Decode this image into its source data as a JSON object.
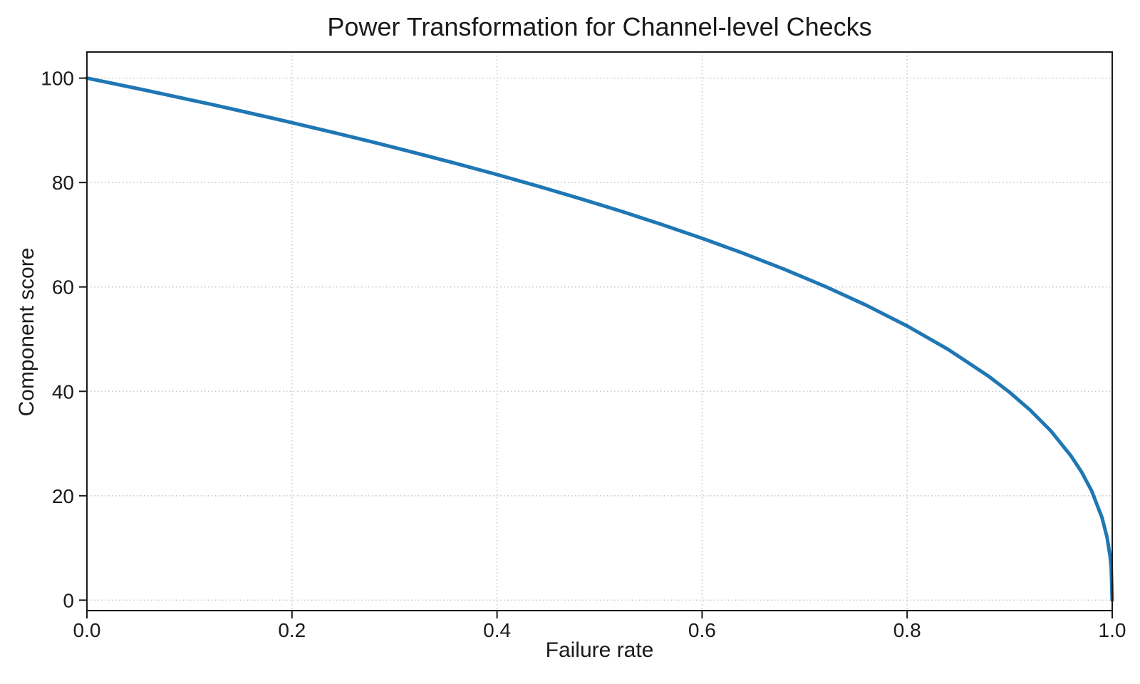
{
  "chart_data": {
    "type": "line",
    "title": "Power Transformation for Channel-level Checks",
    "xlabel": "Failure rate",
    "ylabel": "Component score",
    "xlim": [
      0,
      1
    ],
    "ylim": [
      -2,
      105
    ],
    "xticks": {
      "values": [
        0,
        0.2,
        0.4,
        0.6,
        0.8,
        1.0
      ],
      "labels": [
        "0.0",
        "0.2",
        "0.4",
        "0.6",
        "0.8",
        "1.0"
      ]
    },
    "yticks": {
      "values": [
        0,
        20,
        40,
        60,
        80,
        100
      ],
      "labels": [
        "0",
        "20",
        "40",
        "60",
        "80",
        "100"
      ]
    },
    "grid": {
      "visible": true,
      "line_style": "dotted",
      "color": "#c8c8c8"
    },
    "legend": {
      "visible": false
    },
    "axis_color": "#1a1a1a",
    "text_color": "#1a1a1a",
    "background_color": "#ffffff",
    "series": [
      {
        "name": "component_score",
        "color": "#1f77b4",
        "line_width": 5,
        "formula": "score = 100 * (1 - failure_rate)^0.4",
        "points": [
          [
            0,
            100
          ],
          [
            0.02,
            99.19
          ],
          [
            0.04,
            98.38
          ],
          [
            0.06,
            97.56
          ],
          [
            0.08,
            96.72
          ],
          [
            0.1,
            95.87
          ],
          [
            0.12,
            95.02
          ],
          [
            0.14,
            94.15
          ],
          [
            0.16,
            93.26
          ],
          [
            0.18,
            92.37
          ],
          [
            0.2,
            91.46
          ],
          [
            0.24,
            89.6
          ],
          [
            0.28,
            87.69
          ],
          [
            0.32,
            85.7
          ],
          [
            0.36,
            83.65
          ],
          [
            0.4,
            81.52
          ],
          [
            0.44,
            79.3
          ],
          [
            0.48,
            76.98
          ],
          [
            0.52,
            74.56
          ],
          [
            0.56,
            72.01
          ],
          [
            0.6,
            69.31
          ],
          [
            0.64,
            66.46
          ],
          [
            0.68,
            63.4
          ],
          [
            0.72,
            60.1
          ],
          [
            0.76,
            56.51
          ],
          [
            0.8,
            52.53
          ],
          [
            0.84,
            48.04
          ],
          [
            0.88,
            42.82
          ],
          [
            0.9,
            39.81
          ],
          [
            0.92,
            36.41
          ],
          [
            0.94,
            32.45
          ],
          [
            0.96,
            27.59
          ],
          [
            0.97,
            24.6
          ],
          [
            0.98,
            20.91
          ],
          [
            0.99,
            15.85
          ],
          [
            0.995,
            12.01
          ],
          [
            0.998,
            8.33
          ],
          [
            0.999,
            6.31
          ],
          [
            1,
            0
          ]
        ]
      }
    ]
  }
}
